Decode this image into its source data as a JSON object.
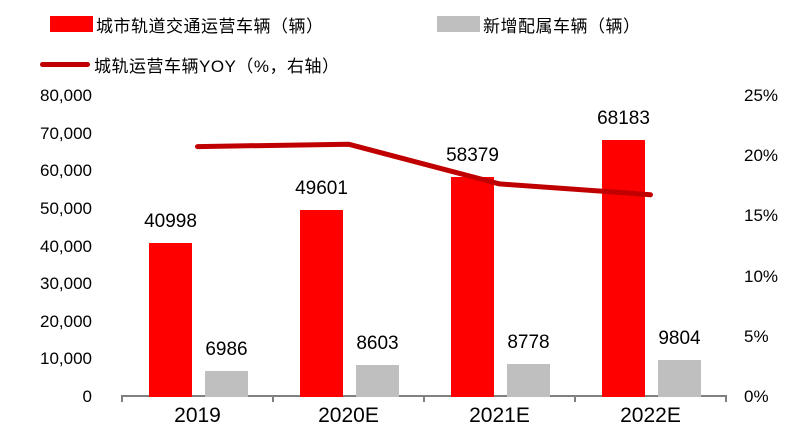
{
  "legend": {
    "items": [
      {
        "label": "城市轨道交通运营车辆（辆）",
        "color": "#FE0000",
        "swatch": "rect"
      },
      {
        "label": "新增配属车辆（辆）",
        "color": "#BFBFBF",
        "swatch": "rect"
      },
      {
        "label": "城轨运营车辆YOY（%，右轴）",
        "color": "#C00000",
        "swatch": "line"
      }
    ],
    "position": "top-left"
  },
  "chart_data": {
    "type": "bar",
    "title": "",
    "categories": [
      "2019",
      "2020E",
      "2021E",
      "2022E"
    ],
    "series": [
      {
        "name": "城市轨道交通运营车辆（辆）",
        "type": "bar",
        "axis": "left",
        "color": "#FE0000",
        "values": [
          40998,
          49601,
          58379,
          68183
        ],
        "data_labels": [
          40998,
          49601,
          58379,
          68183
        ]
      },
      {
        "name": "新增配属车辆（辆）",
        "type": "bar",
        "axis": "left",
        "color": "#BFBFBF",
        "values": [
          6986,
          8603,
          8778,
          9804
        ],
        "data_labels": [
          6986,
          8603,
          8778,
          9804
        ]
      },
      {
        "name": "城轨运营车辆YOY（%，右轴）",
        "type": "line",
        "axis": "right",
        "color": "#C00000",
        "values": [
          20.8,
          21.0,
          17.7,
          16.8
        ]
      }
    ],
    "left_axis": {
      "min": 0,
      "max": 80000,
      "tick_labels": [
        "0",
        "10,000",
        "20,000",
        "30,000",
        "40,000",
        "50,000",
        "60,000",
        "70,000",
        "80,000"
      ]
    },
    "right_axis": {
      "min": 0,
      "max": 25,
      "tick_labels": [
        "0%",
        "5%",
        "10%",
        "15%",
        "20%",
        "25%"
      ]
    },
    "grid": false,
    "legend_position": "top-left"
  },
  "colors": {
    "bar_red": "#FE0000",
    "bar_gray": "#BFBFBF",
    "line_red": "#C00000",
    "axis_gray": "#808080",
    "text": "#000000",
    "background": "#FFFFFF"
  }
}
